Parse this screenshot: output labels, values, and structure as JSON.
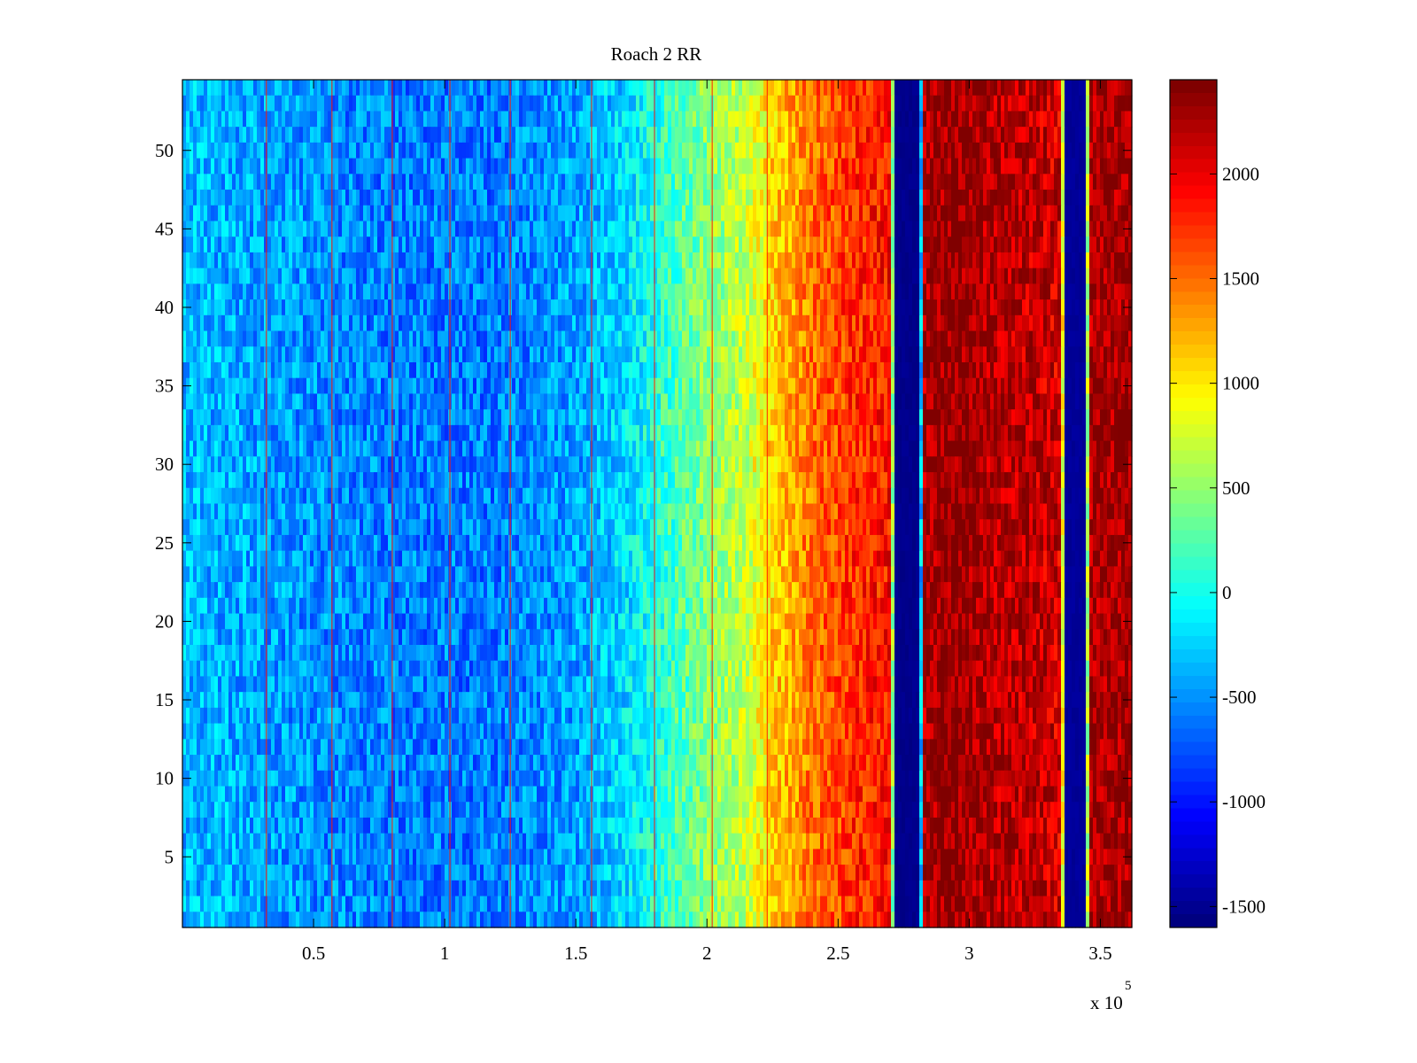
{
  "chart_data": {
    "type": "heatmap",
    "title": "Roach 2 RR",
    "xlabel": "",
    "ylabel": "",
    "x_multiplier_label": "x 10",
    "x_multiplier_exponent": "5",
    "xlim": [
      0,
      3.62
    ],
    "ylim": [
      0.5,
      54.5
    ],
    "x_ticks": [
      0.5,
      1,
      1.5,
      2,
      2.5,
      3,
      3.5
    ],
    "x_tick_labels": [
      "0.5",
      "1",
      "1.5",
      "2",
      "2.5",
      "3",
      "3.5"
    ],
    "y_ticks": [
      5,
      10,
      15,
      20,
      25,
      30,
      35,
      40,
      45,
      50
    ],
    "y_tick_labels": [
      "5",
      "10",
      "15",
      "20",
      "25",
      "30",
      "35",
      "40",
      "45",
      "50"
    ],
    "rows": 54,
    "colormap": "jet",
    "color_range": [
      -1600,
      2450
    ],
    "colorbar_ticks": [
      -1500,
      -1000,
      -500,
      0,
      500,
      1000,
      1500,
      2000
    ],
    "colorbar_tick_labels": [
      "-1500",
      "-1000",
      "-500",
      "0",
      "500",
      "1000",
      "1500",
      "2000"
    ],
    "grid": false,
    "column_profile": {
      "x": [
        0,
        0.3,
        0.6,
        0.9,
        1.2,
        1.5,
        1.7,
        1.85,
        2.0,
        2.15,
        2.25,
        2.4,
        2.55,
        2.7,
        2.72,
        2.81,
        2.83,
        2.95,
        3.1,
        3.25,
        3.35,
        3.37,
        3.44,
        3.46,
        3.62
      ],
      "value": [
        -350,
        -450,
        -550,
        -600,
        -600,
        -450,
        -200,
        150,
        450,
        700,
        1100,
        1500,
        1750,
        1900,
        -1550,
        -1550,
        2300,
        2400,
        2250,
        2200,
        2100,
        -1500,
        -1500,
        2300,
        2350
      ]
    },
    "noise_amplitude": 330,
    "low_bands": [
      {
        "x_start": 2.72,
        "x_end": 2.81,
        "value": -1550
      },
      {
        "x_start": 3.37,
        "x_end": 3.44,
        "value": -1500
      }
    ],
    "stripe_lines": [
      0.32,
      0.57,
      0.8,
      1.02,
      1.25,
      1.56,
      1.8,
      2.02,
      2.23
    ]
  }
}
